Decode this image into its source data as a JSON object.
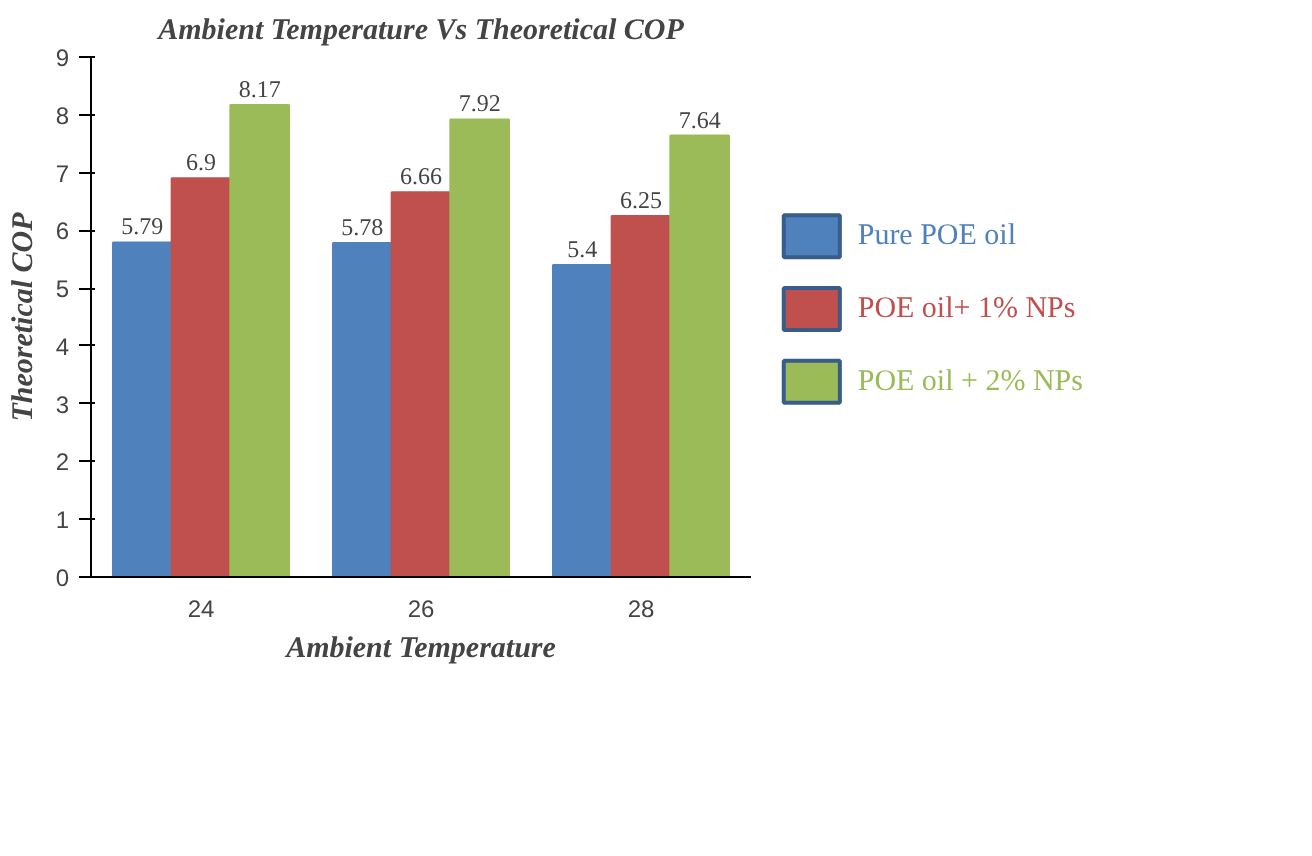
{
  "chart_data": {
    "type": "bar",
    "title": "Ambient Temperature Vs Theoretical COP",
    "xlabel": "Ambient Temperature",
    "ylabel": "Theoretical COP",
    "categories": [
      "24",
      "26",
      "28"
    ],
    "series": [
      {
        "name": "Pure POE oil",
        "color": "#4f81bd",
        "values": [
          5.79,
          5.78,
          5.4
        ]
      },
      {
        "name": "POE oil+  1% NPs",
        "color": "#c0504d",
        "values": [
          6.9,
          6.66,
          6.25
        ]
      },
      {
        "name": "POE oil + 2% NPs",
        "color": "#9bbb59",
        "values": [
          8.17,
          7.92,
          7.64
        ]
      }
    ],
    "ylim": [
      0,
      9
    ],
    "yticks": [
      0,
      1,
      2,
      3,
      4,
      5,
      6,
      7,
      8,
      9
    ],
    "data_labels": true,
    "legend": "right",
    "grid": false
  }
}
